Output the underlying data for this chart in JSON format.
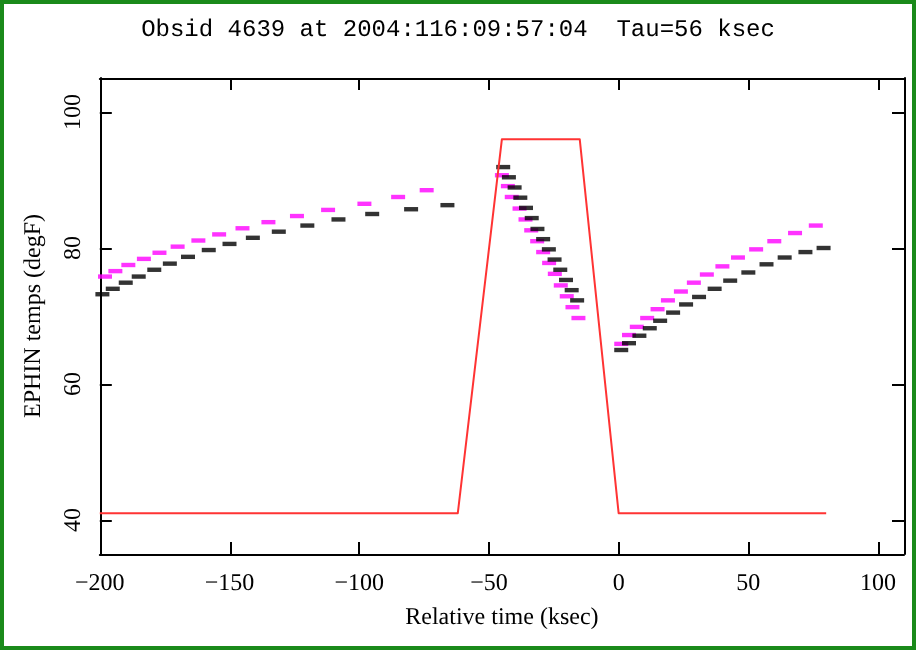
{
  "chart_data": {
    "type": "scatter",
    "title": "Obsid 4639 at 2004:116:09:57:04  Tau=56 ksec",
    "xlabel": "Relative time (ksec)",
    "ylabel": "EPHIN temps (degF)",
    "xlim": [
      -200,
      110
    ],
    "xticks": [
      -200,
      -150,
      -100,
      -50,
      0,
      50,
      100
    ],
    "ylim": [
      35,
      105
    ],
    "yticks": [
      40,
      60,
      80,
      100
    ],
    "series": [
      {
        "type": "line",
        "color": "#ff3333",
        "x": [
          -200,
          -62,
          -45,
          -15,
          0,
          80
        ],
        "values": [
          41,
          41,
          96,
          96,
          41,
          41
        ]
      },
      {
        "color": "#ff00ff",
        "x": [
          -198,
          -194,
          -189,
          -183,
          -177,
          -170,
          -162,
          -154,
          -145,
          -135,
          -124,
          -112,
          -98,
          -85,
          -74,
          -45,
          -42.7,
          -41.2,
          -38.2,
          -35.9,
          -33.7,
          -31.4,
          -29.1,
          -26.8,
          -24.6,
          -22.3,
          -20,
          -17.8,
          -15.5,
          1,
          4,
          7,
          11,
          15,
          19,
          24,
          29,
          34,
          40,
          46,
          53,
          60,
          68,
          76
        ],
        "values": [
          75.8,
          76.6,
          77.5,
          78.4,
          79.3,
          80.2,
          81.1,
          82,
          82.9,
          83.8,
          84.7,
          85.6,
          86.5,
          87.5,
          88.5,
          90.7,
          89.1,
          87.5,
          85.8,
          84.2,
          82.6,
          81,
          79.4,
          77.8,
          76.2,
          74.5,
          72.9,
          71.3,
          69.7,
          65.9,
          67.2,
          68.4,
          69.7,
          71,
          72.3,
          73.6,
          74.9,
          76.1,
          77.3,
          78.6,
          79.8,
          81,
          82.2,
          83.3
        ]
      },
      {
        "color": "#000000",
        "x": [
          -199,
          -195,
          -190,
          -185,
          -179,
          -173,
          -166,
          -158,
          -150,
          -141,
          -131,
          -120,
          -108,
          -95,
          -80,
          -66,
          -44.5,
          -42.3,
          -40.1,
          -37.9,
          -35.7,
          -33.5,
          -31.3,
          -29.1,
          -26.9,
          -24.7,
          -22.5,
          -20.3,
          -18.1,
          -16,
          1,
          4,
          8,
          12,
          16,
          21,
          26,
          31,
          37,
          43,
          50,
          57,
          64,
          72,
          79
        ],
        "values": [
          73.2,
          74,
          74.9,
          75.8,
          76.8,
          77.7,
          78.7,
          79.7,
          80.6,
          81.5,
          82.4,
          83.3,
          84.2,
          85,
          85.7,
          86.3,
          91.9,
          90.4,
          88.9,
          87.4,
          85.9,
          84.4,
          82.8,
          81.3,
          79.8,
          78.3,
          76.8,
          75.3,
          73.8,
          72.3,
          65,
          66,
          67.1,
          68.2,
          69.3,
          70.5,
          71.7,
          72.8,
          74,
          75.2,
          76.4,
          77.6,
          78.6,
          79.4,
          80
        ]
      }
    ]
  }
}
